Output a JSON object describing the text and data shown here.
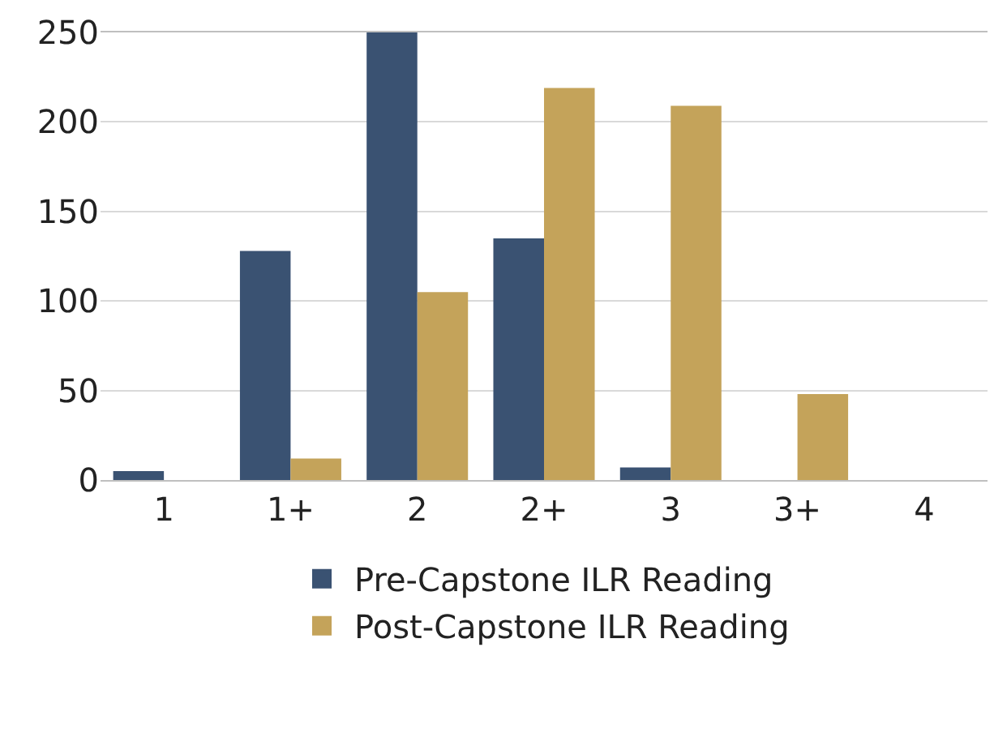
{
  "chart_data": {
    "type": "bar",
    "categories": [
      "1",
      "1+",
      "2",
      "2+",
      "3",
      "3+",
      "4"
    ],
    "series": [
      {
        "name": "Pre-Capstone ILR Reading",
        "color": "#3a5272",
        "values": [
          5,
          128,
          250,
          135,
          7,
          0,
          0
        ]
      },
      {
        "name": "Post-Capstone ILR Reading",
        "color": "#c4a35a",
        "values": [
          0,
          12,
          105,
          219,
          209,
          48,
          0
        ]
      }
    ],
    "ylim": [
      0,
      250
    ],
    "yticks": [
      0,
      50,
      100,
      150,
      200,
      250
    ],
    "grid": "y",
    "legend": "bottom"
  }
}
